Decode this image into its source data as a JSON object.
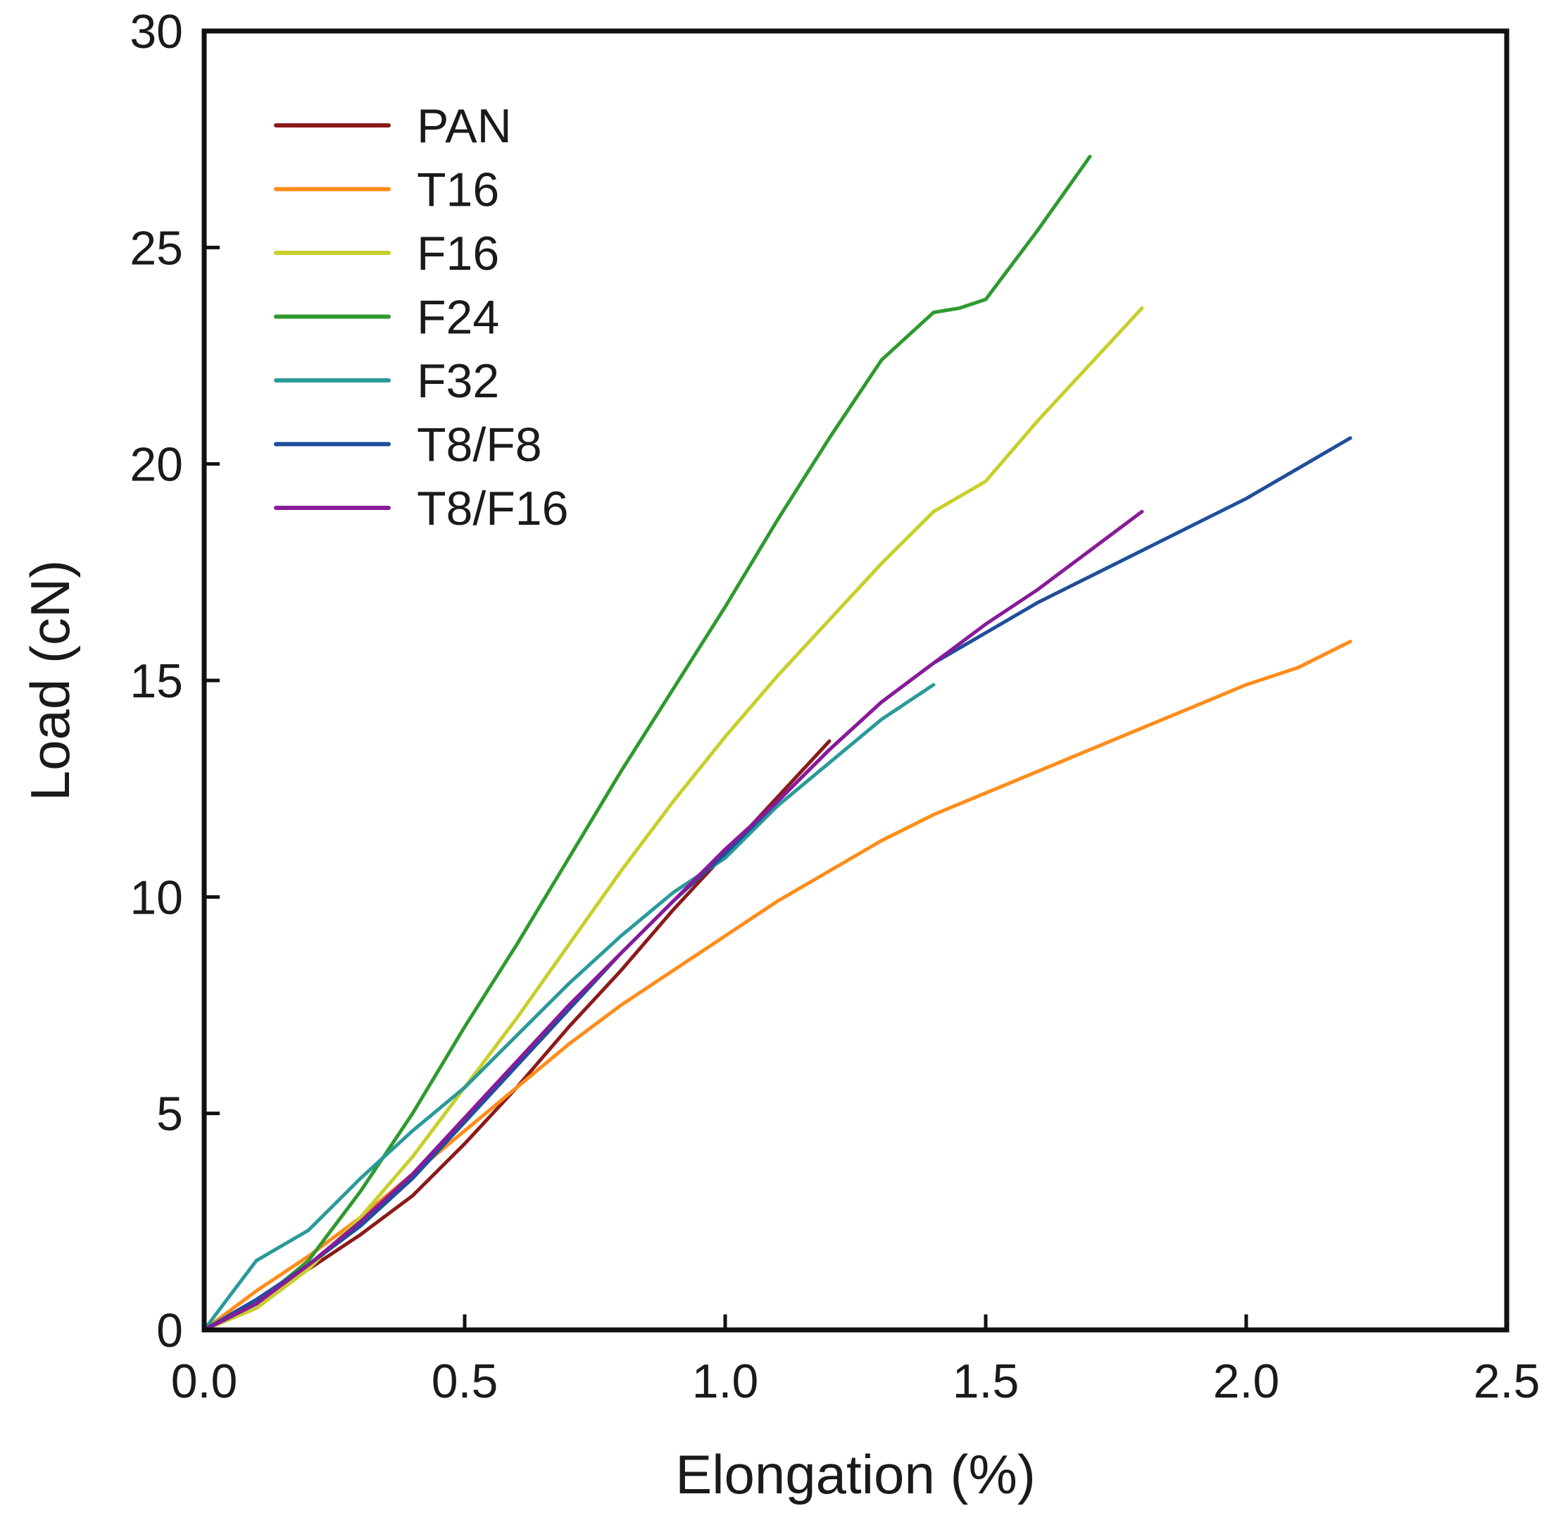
{
  "chart_data": {
    "type": "line",
    "title": "",
    "xlabel": "Elongation (%)",
    "ylabel": "Load (cN)",
    "xlim": [
      0,
      2.5
    ],
    "ylim": [
      0,
      30
    ],
    "xticks": [
      0,
      0.5,
      1.0,
      1.5,
      2.0,
      2.5
    ],
    "xtick_labels": [
      "0.0",
      "0.5",
      "1.0",
      "1.5",
      "2.0",
      "2.5"
    ],
    "yticks": [
      0,
      5,
      10,
      15,
      20,
      25,
      30
    ],
    "ytick_labels": [
      "0",
      "5",
      "10",
      "15",
      "20",
      "25",
      "30"
    ],
    "grid": false,
    "legend_position": "top-left",
    "series": [
      {
        "name": "PAN",
        "color": "#8b1a1a",
        "x": [
          0,
          0.1,
          0.2,
          0.3,
          0.4,
          0.5,
          0.6,
          0.7,
          0.8,
          0.9,
          1.0,
          1.1,
          1.2
        ],
        "y": [
          0,
          0.7,
          1.4,
          2.2,
          3.1,
          4.3,
          5.6,
          7.0,
          8.3,
          9.7,
          11.0,
          12.3,
          13.6
        ]
      },
      {
        "name": "T16",
        "color": "#ff8c1a",
        "x": [
          0,
          0.1,
          0.2,
          0.3,
          0.4,
          0.5,
          0.6,
          0.7,
          0.8,
          0.9,
          1.0,
          1.1,
          1.2,
          1.3,
          1.4,
          1.5,
          1.6,
          1.7,
          1.8,
          1.9,
          2.0,
          2.1,
          2.2
        ],
        "y": [
          0,
          0.9,
          1.7,
          2.6,
          3.6,
          4.6,
          5.6,
          6.6,
          7.5,
          8.3,
          9.1,
          9.9,
          10.6,
          11.3,
          11.9,
          12.4,
          12.9,
          13.4,
          13.9,
          14.4,
          14.9,
          15.3,
          15.9
        ]
      },
      {
        "name": "F16",
        "color": "#c8cf2a",
        "x": [
          0,
          0.1,
          0.2,
          0.3,
          0.4,
          0.5,
          0.6,
          0.7,
          0.8,
          0.9,
          1.0,
          1.1,
          1.2,
          1.3,
          1.4,
          1.5,
          1.6,
          1.7,
          1.8
        ],
        "y": [
          0,
          0.5,
          1.4,
          2.6,
          4.0,
          5.6,
          7.2,
          8.9,
          10.6,
          12.2,
          13.7,
          15.1,
          16.4,
          17.7,
          18.9,
          19.6,
          21.0,
          22.3,
          23.6
        ]
      },
      {
        "name": "F24",
        "color": "#2e9a2e",
        "x": [
          0,
          0.1,
          0.2,
          0.3,
          0.4,
          0.5,
          0.6,
          0.7,
          0.8,
          0.9,
          1.0,
          1.1,
          1.2,
          1.3,
          1.4,
          1.45,
          1.5,
          1.6,
          1.7
        ],
        "y": [
          0,
          0.6,
          1.6,
          3.2,
          5.0,
          7.0,
          8.9,
          10.9,
          12.9,
          14.8,
          16.7,
          18.7,
          20.6,
          22.4,
          23.5,
          23.6,
          23.8,
          25.4,
          27.1
        ]
      },
      {
        "name": "F32",
        "color": "#2a9a9a",
        "x": [
          0,
          0.05,
          0.1,
          0.2,
          0.3,
          0.4,
          0.5,
          0.6,
          0.7,
          0.8,
          0.9,
          1.0,
          1.1,
          1.2,
          1.3,
          1.4
        ],
        "y": [
          0,
          0.8,
          1.6,
          2.3,
          3.5,
          4.6,
          5.6,
          6.8,
          8.0,
          9.1,
          10.1,
          10.9,
          12.1,
          13.1,
          14.1,
          14.9
        ]
      },
      {
        "name": "T8/F8",
        "color": "#1f4e9c",
        "x": [
          0,
          0.1,
          0.2,
          0.3,
          0.4,
          0.5,
          0.6,
          0.7,
          0.8,
          0.9,
          1.0,
          1.1,
          1.2,
          1.3,
          1.4,
          1.5,
          1.6,
          1.7,
          1.8,
          1.9,
          2.0,
          2.1,
          2.2
        ],
        "y": [
          0,
          0.7,
          1.5,
          2.4,
          3.5,
          4.8,
          6.1,
          7.4,
          8.7,
          9.9,
          11.0,
          12.2,
          13.4,
          14.5,
          15.4,
          16.1,
          16.8,
          17.4,
          18.0,
          18.6,
          19.2,
          19.9,
          20.6
        ]
      },
      {
        "name": "T8/F16",
        "color": "#8a1a9a",
        "x": [
          0,
          0.1,
          0.2,
          0.3,
          0.4,
          0.5,
          0.6,
          0.7,
          0.8,
          0.9,
          1.0,
          1.1,
          1.2,
          1.3,
          1.4,
          1.5,
          1.6,
          1.7,
          1.8
        ],
        "y": [
          0,
          0.6,
          1.5,
          2.5,
          3.6,
          4.9,
          6.2,
          7.5,
          8.7,
          9.9,
          11.1,
          12.2,
          13.4,
          14.5,
          15.4,
          16.3,
          17.1,
          18.0,
          18.9
        ]
      }
    ]
  }
}
